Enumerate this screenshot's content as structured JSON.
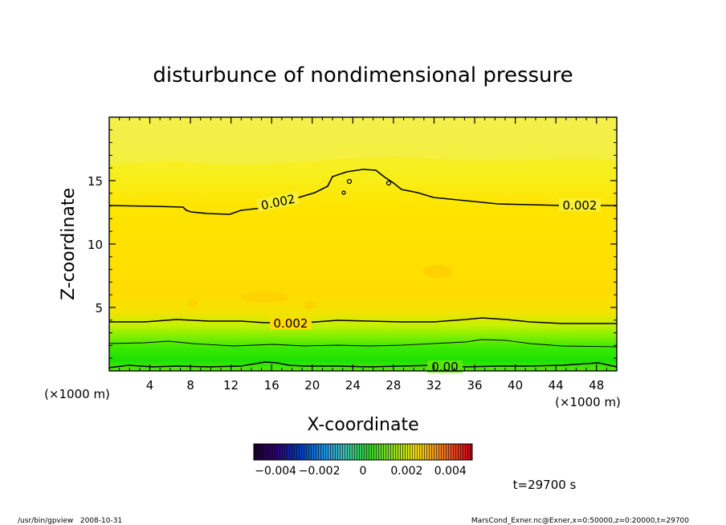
{
  "chart_data": {
    "type": "heatmap",
    "title": "disturbunce of nondimensional pressure",
    "xlabel": "X-coordinate",
    "ylabel": "Z-coordinate",
    "x_unit": "(×1000 m)",
    "y_unit": "(×1000 m)",
    "xlim": [
      0,
      50
    ],
    "ylim": [
      0,
      20
    ],
    "x_ticks": [
      4,
      8,
      12,
      16,
      20,
      24,
      28,
      32,
      36,
      40,
      44,
      48
    ],
    "y_ticks": [
      5,
      10,
      15
    ],
    "contour_labels": [
      "0.002",
      "0.002",
      "0.002",
      "0.00"
    ],
    "colorbar": {
      "range": [
        -0.005,
        0.005
      ],
      "tick_values": [
        -0.004,
        -0.002,
        0,
        0.002,
        0.004
      ],
      "tick_labels": [
        "−0.004",
        "−0.002",
        "0",
        "0.002",
        "0.004"
      ]
    },
    "time_label": "t=29700 s",
    "footer_left": "/usr/bin/gpview   2008-10-31",
    "footer_right": "MarsCond_Exner.nc@Exner,x=0:50000,z=0:20000,t=29700"
  }
}
